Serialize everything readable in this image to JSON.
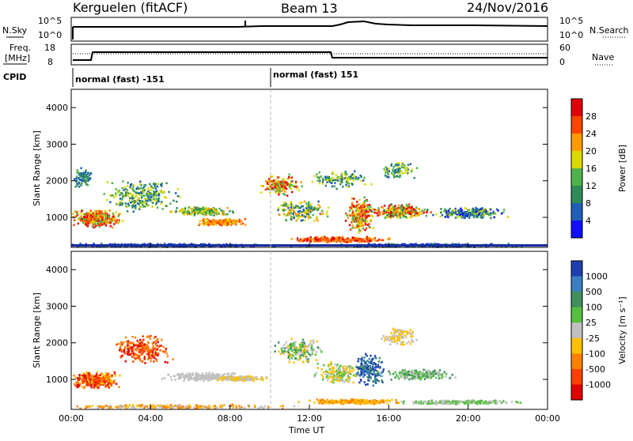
{
  "header": {
    "station": "Kerguelen (fitACF)",
    "beam": "Beam 13",
    "date": "24/Nov/2016"
  },
  "top_panel": {
    "left_label": "N.Sky",
    "right_label": "N.Search",
    "y_ticks_left": [
      "10^5",
      "10^0"
    ],
    "y_ticks_right": [
      "10^5",
      "10^0"
    ]
  },
  "freq_panel": {
    "left_label_line1": "Freq.",
    "left_label_line2": "[MHz]",
    "right_label": "Nave",
    "y_ticks_left": [
      "18",
      "8"
    ],
    "y_ticks_right": [
      "60",
      "0"
    ],
    "cpid_label": "CPID",
    "cpid_segments": [
      "normal (fast) -151",
      "normal (fast) 151"
    ]
  },
  "chart_data": [
    {
      "type": "heatmap",
      "title": "",
      "ylabel": "Slant Range [km]",
      "xlabel": "",
      "yticks": [
        "1000",
        "2000",
        "3000",
        "4000"
      ],
      "xticks": [
        "00:00",
        "04:00",
        "08:00",
        "12:00",
        "16:00",
        "20:00",
        "00:00"
      ],
      "colorbar_label": "Power [dB]",
      "colorbar_ticks": [
        "28",
        "24",
        "20",
        "16",
        "12",
        "8",
        "4"
      ],
      "colors": [
        "#e0000a",
        "#ff4500",
        "#ff9a00",
        "#d9d900",
        "#4fb349",
        "#2e8b57",
        "#1f5fb8",
        "#1010ff"
      ]
    },
    {
      "type": "heatmap",
      "title": "",
      "ylabel": "Slant Range [km]",
      "xlabel": "Time UT",
      "yticks": [
        "1000",
        "2000",
        "3000",
        "4000"
      ],
      "xticks": [
        "00:00",
        "04:00",
        "08:00",
        "12:00",
        "16:00",
        "20:00",
        "00:00"
      ],
      "colorbar_label": "Velocity [m s⁻¹]",
      "colorbar_ticks": [
        "1000",
        "500",
        "100",
        "25",
        "-25",
        "-100",
        "-500",
        "-1000"
      ],
      "colors": [
        "#1f3fb0",
        "#3a7fbf",
        "#3f8f5f",
        "#55c040",
        "#c0c0c0",
        "#ffc000",
        "#ff8000",
        "#ff4000",
        "#e00000"
      ]
    }
  ]
}
